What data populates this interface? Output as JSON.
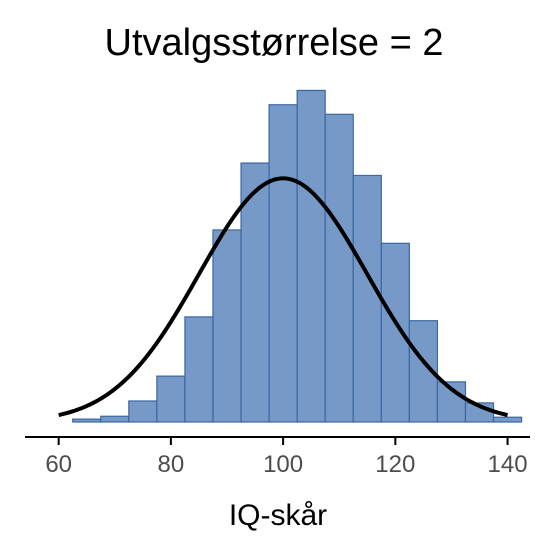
{
  "chart_data": {
    "type": "bar",
    "title": "Utvalgsstørrelse = 2",
    "xlabel": "IQ-skår",
    "ylabel": "",
    "xlim": [
      54,
      144
    ],
    "xticks": [
      60,
      80,
      100,
      120,
      140
    ],
    "bin_width": 5,
    "bins": [
      {
        "start": 62.5,
        "count": 0.3
      },
      {
        "start": 67.5,
        "count": 0.6
      },
      {
        "start": 72.5,
        "count": 2.2
      },
      {
        "start": 77.5,
        "count": 4.8
      },
      {
        "start": 82.5,
        "count": 11.0
      },
      {
        "start": 87.5,
        "count": 20.1
      },
      {
        "start": 92.5,
        "count": 27.1
      },
      {
        "start": 97.5,
        "count": 33.2
      },
      {
        "start": 102.5,
        "count": 34.7
      },
      {
        "start": 107.5,
        "count": 32.2
      },
      {
        "start": 112.5,
        "count": 25.8
      },
      {
        "start": 117.5,
        "count": 18.7
      },
      {
        "start": 122.5,
        "count": 10.6
      },
      {
        "start": 127.5,
        "count": 4.2
      },
      {
        "start": 132.5,
        "count": 2.0
      },
      {
        "start": 137.5,
        "count": 0.5
      }
    ],
    "ylim": [
      0,
      36
    ],
    "curve": {
      "mean": 100,
      "sd": 15,
      "peak": 25.5,
      "x_range": [
        60,
        140
      ]
    },
    "colors": {
      "bar_fill": "#7799c7",
      "bar_stroke": "#3c67a3",
      "curve": "#000000",
      "axis": "#000000",
      "tick_text": "#4d4d4d"
    },
    "grid": false,
    "legend": "none"
  }
}
